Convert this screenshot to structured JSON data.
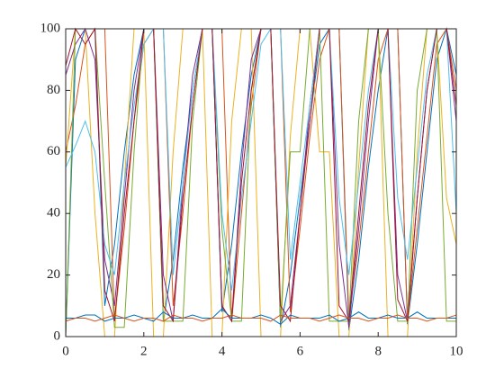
{
  "chart_data": {
    "type": "line",
    "x": [
      0,
      0.25,
      0.5,
      0.75,
      1,
      1.25,
      1.5,
      1.75,
      2,
      2.25,
      2.5,
      2.75,
      3,
      3.25,
      3.5,
      3.75,
      4,
      4.25,
      4.5,
      4.75,
      5,
      5.25,
      5.5,
      5.75,
      6,
      6.25,
      6.5,
      6.75,
      7,
      7.25,
      7.5,
      7.75,
      8,
      8.25,
      8.5,
      8.75,
      9,
      9.25,
      9.5,
      9.75,
      10
    ],
    "series": [
      {
        "color": "#0072BD",
        "values": [
          0,
          90,
          100,
          100,
          10,
          30,
          60,
          85,
          100,
          100,
          5,
          25,
          55,
          80,
          100,
          100,
          8,
          30,
          60,
          85,
          100,
          100,
          3,
          20,
          45,
          70,
          95,
          100,
          100,
          2,
          25,
          55,
          80,
          100,
          100,
          4,
          30,
          60,
          90,
          100,
          85
        ]
      },
      {
        "color": "#D95319",
        "values": [
          60,
          75,
          95,
          100,
          100,
          5,
          35,
          70,
          95,
          100,
          100,
          10,
          40,
          75,
          100,
          100,
          100,
          5,
          40,
          75,
          100,
          100,
          100,
          8,
          35,
          65,
          90,
          100,
          100,
          6,
          30,
          60,
          90,
          100,
          100,
          5,
          35,
          65,
          95,
          100,
          80
        ]
      },
      {
        "color": "#EDB120",
        "values": [
          55,
          100,
          100,
          40,
          0,
          0,
          50,
          100,
          100,
          0,
          0,
          60,
          100,
          100,
          100,
          0,
          0,
          70,
          100,
          100,
          0,
          0,
          0,
          65,
          100,
          100,
          60,
          60,
          0,
          0,
          55,
          100,
          100,
          0,
          0,
          0,
          60,
          100,
          100,
          45,
          30
        ]
      },
      {
        "color": "#7E2F8E",
        "values": [
          85,
          95,
          100,
          90,
          25,
          10,
          45,
          80,
          100,
          100,
          20,
          5,
          50,
          85,
          100,
          100,
          10,
          5,
          55,
          90,
          100,
          100,
          5,
          10,
          40,
          75,
          100,
          100,
          30,
          3,
          35,
          70,
          100,
          100,
          20,
          5,
          45,
          80,
          100,
          100,
          70
        ]
      },
      {
        "color": "#77AC30",
        "values": [
          0,
          100,
          100,
          100,
          50,
          3,
          3,
          60,
          100,
          100,
          5,
          5,
          5,
          70,
          100,
          100,
          35,
          5,
          5,
          80,
          100,
          100,
          5,
          60,
          60,
          100,
          100,
          5,
          5,
          5,
          70,
          100,
          100,
          40,
          5,
          5,
          80,
          100,
          100,
          5,
          5
        ]
      },
      {
        "color": "#4DBEEE",
        "values": [
          55,
          62,
          70,
          60,
          30,
          20,
          50,
          75,
          95,
          100,
          100,
          20,
          50,
          80,
          100,
          100,
          40,
          15,
          45,
          70,
          95,
          100,
          100,
          25,
          50,
          75,
          100,
          100,
          45,
          20,
          50,
          80,
          100,
          100,
          45,
          25,
          55,
          85,
          100,
          100,
          40
        ]
      },
      {
        "color": "#A2142F",
        "values": [
          88,
          100,
          95,
          100,
          15,
          5,
          40,
          70,
          100,
          100,
          10,
          5,
          45,
          75,
          100,
          100,
          10,
          5,
          50,
          80,
          100,
          100,
          10,
          5,
          40,
          70,
          100,
          100,
          10,
          5,
          40,
          75,
          100,
          100,
          12,
          5,
          45,
          80,
          100,
          100,
          75
        ]
      },
      {
        "color": "#0072BD",
        "values": [
          6,
          6,
          7,
          7,
          5,
          6,
          6,
          7,
          6,
          5,
          8,
          6,
          6,
          7,
          6,
          6,
          9,
          6,
          6,
          6,
          7,
          6,
          4,
          7,
          6,
          6,
          6,
          7,
          5,
          6,
          8,
          6,
          6,
          7,
          6,
          6,
          8,
          6,
          6,
          6,
          6
        ]
      },
      {
        "color": "#D95319",
        "values": [
          5,
          6,
          6,
          5,
          6,
          7,
          6,
          5,
          6,
          6,
          5,
          7,
          6,
          6,
          5,
          6,
          6,
          7,
          6,
          6,
          6,
          5,
          7,
          6,
          6,
          6,
          5,
          6,
          7,
          6,
          6,
          5,
          6,
          6,
          7,
          6,
          6,
          5,
          6,
          6,
          7
        ]
      },
      {
        "color": "#7E2F8E",
        "values": [
          100,
          100,
          100,
          100,
          100,
          100,
          100,
          100,
          100,
          100,
          100,
          100,
          100,
          100,
          100,
          100,
          100,
          100,
          100,
          100,
          100,
          100,
          100,
          100,
          100,
          100,
          100,
          100,
          100,
          100,
          100,
          100,
          100,
          100,
          100,
          100,
          100,
          100,
          100,
          100,
          100
        ]
      }
    ],
    "xlim": [
      0,
      10
    ],
    "ylim": [
      0,
      100
    ],
    "xticks": [
      0,
      2,
      4,
      6,
      8,
      10
    ],
    "yticks": [
      0,
      20,
      40,
      60,
      80,
      100
    ]
  }
}
